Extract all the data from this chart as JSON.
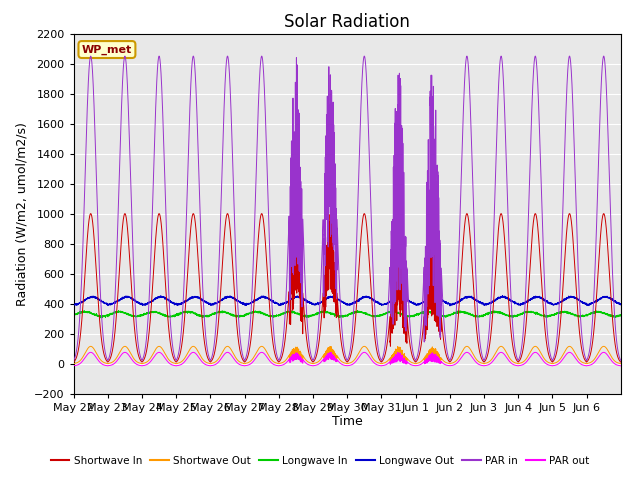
{
  "title": "Solar Radiation",
  "ylabel": "Radiation (W/m2, umol/m2/s)",
  "xlabel": "Time",
  "station_label": "WP_met",
  "ylim": [
    -200,
    2200
  ],
  "yticks": [
    -200,
    0,
    200,
    400,
    600,
    800,
    1000,
    1200,
    1400,
    1600,
    1800,
    2000,
    2200
  ],
  "x_tick_labels": [
    "May 22",
    "May 23",
    "May 24",
    "May 25",
    "May 26",
    "May 27",
    "May 28",
    "May 29",
    "May 30",
    "May 31",
    "Jun 1",
    "Jun 2",
    "Jun 3",
    "Jun 4",
    "Jun 5",
    "Jun 6"
  ],
  "n_days": 16,
  "points_per_day": 288,
  "colors": {
    "shortwave_in": "#cc0000",
    "shortwave_out": "#ff9900",
    "longwave_in": "#00cc00",
    "longwave_out": "#0000cc",
    "par_in": "#9933cc",
    "par_out": "#ff00ff"
  },
  "background_color": "#e8e8e8",
  "title_fontsize": 12,
  "label_fontsize": 9,
  "tick_fontsize": 8
}
